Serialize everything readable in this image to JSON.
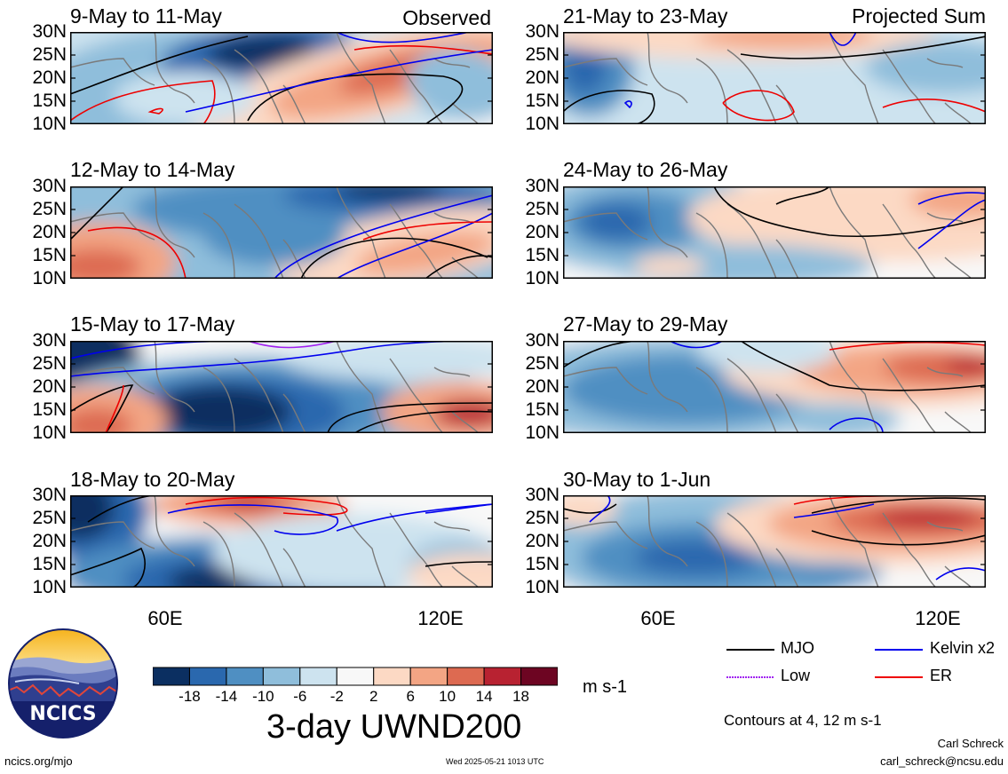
{
  "panels": [
    {
      "title": "9-May to 11-May",
      "tag": "Observed",
      "pattern": 0
    },
    {
      "title": "12-May to 14-May",
      "tag": "",
      "pattern": 1
    },
    {
      "title": "15-May to 17-May",
      "tag": "",
      "pattern": 2
    },
    {
      "title": "18-May to 20-May",
      "tag": "",
      "pattern": 3
    },
    {
      "title": "21-May to 23-May",
      "tag": "Projected Sum",
      "pattern": 4
    },
    {
      "title": "24-May to 26-May",
      "tag": "",
      "pattern": 5
    },
    {
      "title": "27-May to 29-May",
      "tag": "",
      "pattern": 6
    },
    {
      "title": "30-May to 1-Jun",
      "tag": "",
      "pattern": 7
    }
  ],
  "lat_labels": [
    "30N",
    "25N",
    "20N",
    "15N",
    "10N"
  ],
  "lon_labels": [
    "60E",
    "120E"
  ],
  "colorbar": {
    "colors": [
      "#0b2f61",
      "#2a68ae",
      "#4f8fc2",
      "#8fbedb",
      "#cde3ef",
      "#f8f8f8",
      "#fcd9c4",
      "#f3a584",
      "#dd6a51",
      "#b82231",
      "#6d0522"
    ],
    "labels": [
      "-18",
      "-14",
      "-10",
      "-6",
      "-2",
      "2",
      "6",
      "10",
      "14",
      "18"
    ],
    "units": "m s-1",
    "title": "3-day UWND200"
  },
  "legend": [
    {
      "label": "MJO",
      "color": "#000000"
    },
    {
      "label": "Kelvin x2",
      "color": "#0000ee"
    },
    {
      "label": "Low",
      "color": "#a020f0"
    },
    {
      "label": "ER",
      "color": "#ee0000"
    }
  ],
  "contours_note": "Contours at 4, 12 m s-1",
  "logo_text": "NCICS",
  "footer": {
    "left": "ncics.org/mjo",
    "center": "Wed 2025-05-21 1013 UTC",
    "author": "Carl Schreck",
    "email": "carl_schreck@ncsu.edu"
  }
}
